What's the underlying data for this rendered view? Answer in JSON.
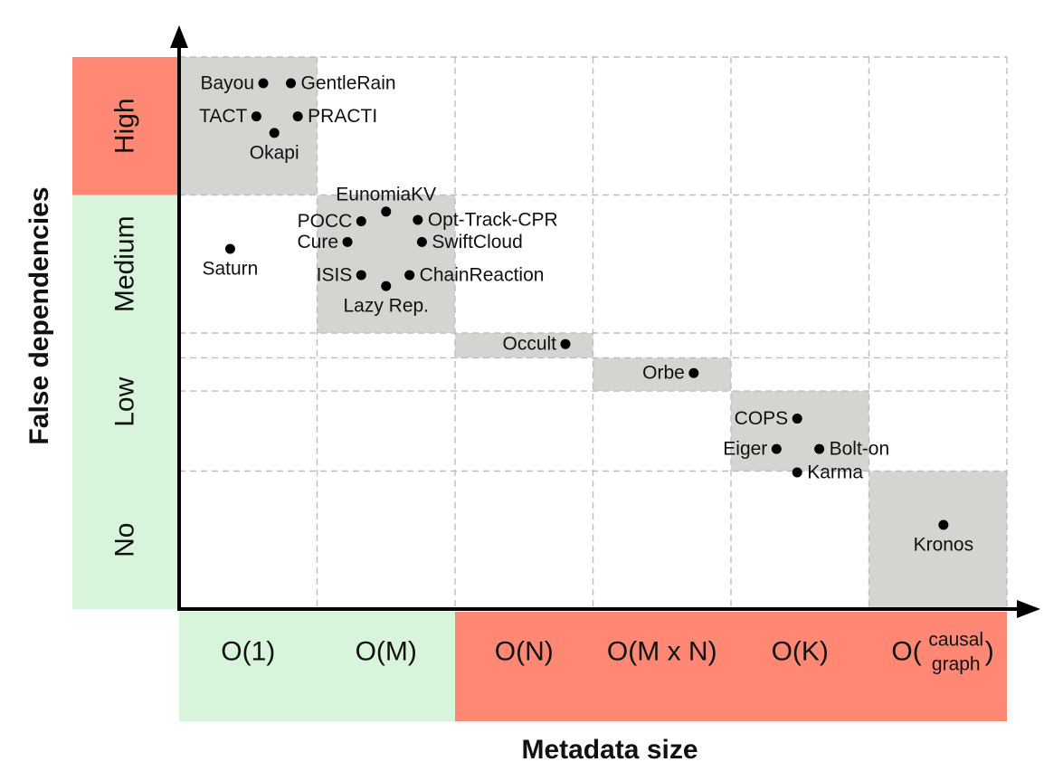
{
  "chart_data": {
    "type": "scatter",
    "title": "",
    "xlabel": "Metadata size",
    "ylabel": "False dependencies",
    "x_categories": [
      "O(1)",
      "O(M)",
      "O(N)",
      "O(M x N)",
      "O(K)",
      "O(causal graph)"
    ],
    "x_category_label_parts": {
      "O(causal graph)": {
        "prefix": "O(",
        "top": "causal",
        "bottom": "graph",
        "suffix": ")"
      }
    },
    "x_category_colors": [
      "#d8f5dc",
      "#d8f5dc",
      "#fe8873",
      "#fe8873",
      "#fe8873",
      "#fe8873"
    ],
    "y_bands": [
      "No",
      "Low",
      "Medium",
      "High"
    ],
    "y_band_colors": [
      "#d8f5dc",
      "#d8f5dc",
      "#d8f5dc",
      "#fe8873"
    ],
    "grid": "dashed",
    "region_color": "#d4d4d0",
    "regions": [
      {
        "x": [
          0,
          1
        ],
        "y": [
          3.0,
          4.0
        ]
      },
      {
        "x": [
          1,
          2
        ],
        "y": [
          2.0,
          3.0
        ]
      },
      {
        "x": [
          2,
          3
        ],
        "y": [
          1.82,
          2.0
        ]
      },
      {
        "x": [
          3,
          4
        ],
        "y": [
          1.58,
          1.82
        ]
      },
      {
        "x": [
          4,
          5
        ],
        "y": [
          1.0,
          1.58
        ]
      },
      {
        "x": [
          5,
          6
        ],
        "y": [
          0.0,
          1.0
        ]
      }
    ],
    "points": [
      {
        "name": "Bayou",
        "x": 0.61,
        "y": 3.81,
        "label_pos": "left"
      },
      {
        "name": "GentleRain",
        "x": 0.81,
        "y": 3.81,
        "label_pos": "right"
      },
      {
        "name": "TACT",
        "x": 0.56,
        "y": 3.57,
        "label_pos": "left"
      },
      {
        "name": "PRACTI",
        "x": 0.86,
        "y": 3.57,
        "label_pos": "right"
      },
      {
        "name": "Okapi",
        "x": 0.69,
        "y": 3.45,
        "label_pos": "below"
      },
      {
        "name": "Saturn",
        "x": 0.37,
        "y": 2.61,
        "label_pos": "below"
      },
      {
        "name": "EunomiaKV",
        "x": 1.5,
        "y": 2.88,
        "label_pos": "above"
      },
      {
        "name": "POCC",
        "x": 1.32,
        "y": 2.81,
        "label_pos": "left"
      },
      {
        "name": "Opt-Track-CPR",
        "x": 1.73,
        "y": 2.82,
        "label_pos": "right"
      },
      {
        "name": "Cure",
        "x": 1.22,
        "y": 2.66,
        "label_pos": "left"
      },
      {
        "name": "SwiftCloud",
        "x": 1.76,
        "y": 2.66,
        "label_pos": "right"
      },
      {
        "name": "ISIS",
        "x": 1.32,
        "y": 2.42,
        "label_pos": "left"
      },
      {
        "name": "ChainReaction",
        "x": 1.67,
        "y": 2.42,
        "label_pos": "right"
      },
      {
        "name": "Lazy Rep.",
        "x": 1.5,
        "y": 2.34,
        "label_pos": "below"
      },
      {
        "name": "Occult",
        "x": 2.8,
        "y": 1.92,
        "label_pos": "left"
      },
      {
        "name": "Orbe",
        "x": 3.73,
        "y": 1.71,
        "label_pos": "left"
      },
      {
        "name": "COPS",
        "x": 4.48,
        "y": 1.38,
        "label_pos": "left"
      },
      {
        "name": "Eiger",
        "x": 4.33,
        "y": 1.16,
        "label_pos": "left"
      },
      {
        "name": "Bolt-on",
        "x": 4.64,
        "y": 1.16,
        "label_pos": "right"
      },
      {
        "name": "Karma",
        "x": 4.48,
        "y": 0.99,
        "label_pos": "right"
      },
      {
        "name": "Kronos",
        "x": 5.54,
        "y": 0.61,
        "label_pos": "below"
      }
    ]
  }
}
